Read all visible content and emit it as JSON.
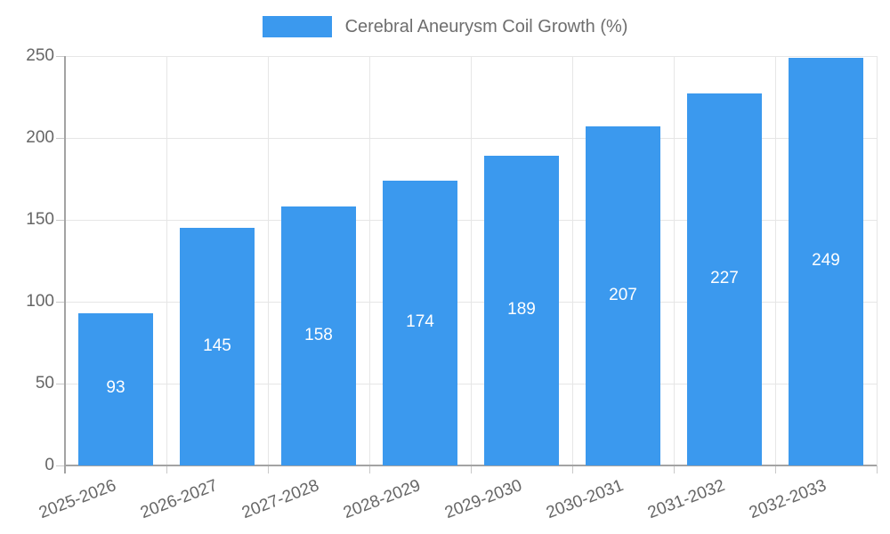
{
  "legend": {
    "label": "Cerebral Aneurysm Coil Growth (%)"
  },
  "chart_data": {
    "type": "bar",
    "title": "Cerebral Aneurysm Coil Growth (%)",
    "categories": [
      "2025-2026",
      "2026-2027",
      "2027-2028",
      "2028-2029",
      "2029-2030",
      "2030-2031",
      "2031-2032",
      "2032-2033"
    ],
    "values": [
      93,
      145,
      158,
      174,
      189,
      207,
      227,
      249
    ],
    "xlabel": "",
    "ylabel": "",
    "ylim": [
      0,
      250
    ],
    "yticks": [
      0,
      50,
      100,
      150,
      200,
      250
    ],
    "grid": true,
    "legend_position": "top",
    "bar_color": "#3b99ee",
    "value_label_color": "#ffffff",
    "grid_color": "#e6e6e6",
    "tick_color": "#c9c9c9",
    "axis_color": "#a3a3a3",
    "text_color": "#666666"
  }
}
